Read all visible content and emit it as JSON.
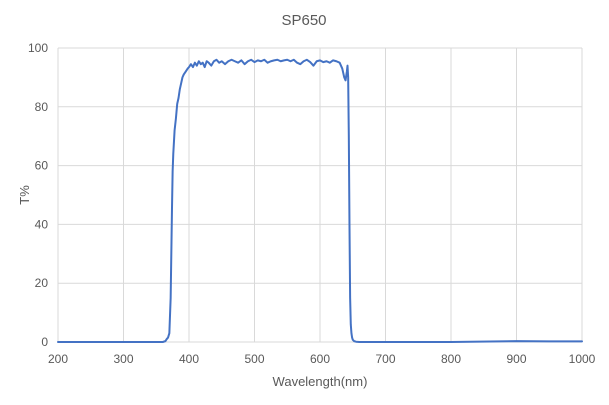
{
  "chart_data": {
    "type": "line",
    "title": "SP650",
    "xlabel": "Wavelength(nm)",
    "ylabel": "T%",
    "xlim": [
      200,
      1000
    ],
    "ylim": [
      0,
      100
    ],
    "x_ticks": [
      200,
      300,
      400,
      500,
      600,
      700,
      800,
      900,
      1000
    ],
    "y_ticks": [
      0,
      20,
      40,
      60,
      80,
      100
    ],
    "grid": true,
    "legend": "none",
    "series_color": "#4472c4",
    "series": [
      {
        "name": "SP650",
        "x": [
          200,
          300,
          360,
          364,
          366,
          368,
          370,
          372,
          374,
          375,
          376,
          378,
          380,
          382,
          384,
          386,
          388,
          390,
          392,
          395,
          398,
          400,
          403,
          406,
          409,
          412,
          415,
          418,
          421,
          424,
          427,
          430,
          434,
          438,
          442,
          446,
          450,
          455,
          460,
          465,
          470,
          475,
          480,
          485,
          490,
          495,
          500,
          505,
          510,
          515,
          520,
          525,
          530,
          535,
          540,
          545,
          550,
          555,
          560,
          565,
          570,
          575,
          580,
          585,
          590,
          595,
          600,
          605,
          610,
          615,
          620,
          625,
          630,
          634,
          637,
          639,
          641,
          642,
          643,
          644,
          645,
          646,
          647,
          648,
          649,
          650,
          652,
          655,
          660,
          670,
          700,
          800,
          900,
          950,
          1000
        ],
        "values": [
          0,
          0,
          0,
          0.3,
          1.0,
          1.5,
          3,
          15,
          45,
          58,
          64,
          72,
          76,
          81,
          83,
          86,
          88,
          90,
          91,
          92,
          93,
          93.5,
          94.5,
          93.5,
          95,
          94,
          95.5,
          94.5,
          95,
          93.5,
          95.5,
          95,
          94,
          95.5,
          96,
          95,
          95.5,
          94.5,
          95.5,
          96,
          95.5,
          95,
          95.8,
          94.5,
          95.5,
          96,
          95.2,
          95.8,
          95.5,
          96,
          95,
          95.5,
          95.8,
          96,
          95.5,
          95.8,
          96,
          95.5,
          96,
          95,
          94.5,
          95.5,
          96,
          95.2,
          94,
          95.5,
          95.8,
          95.2,
          95.5,
          95,
          95.8,
          95.5,
          95,
          93,
          90,
          89,
          92,
          94,
          90,
          70,
          40,
          15,
          6,
          3,
          1.5,
          0.8,
          0.3,
          0.1,
          0,
          0,
          0,
          0,
          0.3,
          0.2,
          0.2
        ]
      }
    ]
  }
}
